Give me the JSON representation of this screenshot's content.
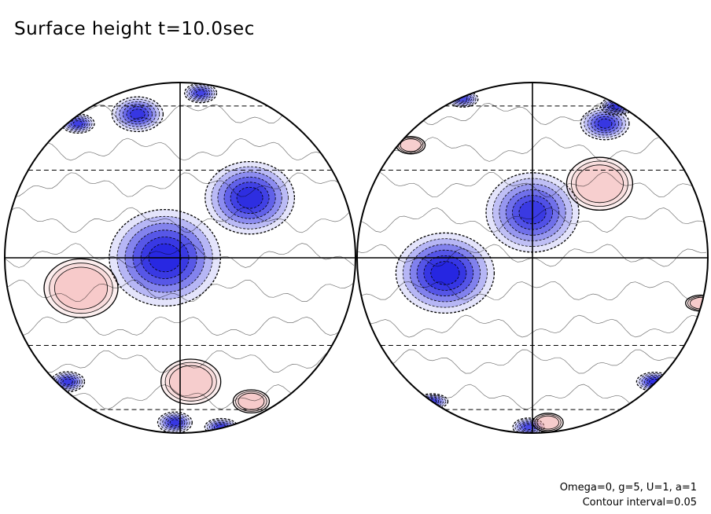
{
  "title": "Surface height t=10.0sec",
  "footer": {
    "params": "Omega=0, g=5, U=1, a=1",
    "contour_interval": "Contour interval=0.05"
  },
  "colors": {
    "positive": "#f0a0a0",
    "negative": "#2020e0",
    "outline": "#000000",
    "background": "#ffffff"
  },
  "chart_data": {
    "type": "heatmap",
    "projection": "two hemispheres (orthographic)",
    "grid": "on",
    "hemispheres": [
      {
        "features": [
          {
            "sign": "neg",
            "lon": 130,
            "lat": 0,
            "amp": 0.9
          },
          {
            "sign": "neg",
            "lon": 160,
            "lat": 20,
            "amp": 0.75
          },
          {
            "sign": "neg",
            "lon": 110,
            "lat": 55,
            "amp": 0.6
          },
          {
            "sign": "neg",
            "lon": 155,
            "lat": 70,
            "amp": 0.45
          },
          {
            "sign": "neg",
            "lon": 70,
            "lat": 50,
            "amp": 0.5
          },
          {
            "sign": "neg",
            "lon": 70,
            "lat": -45,
            "amp": 0.55
          },
          {
            "sign": "neg",
            "lon": 130,
            "lat": -70,
            "amp": 0.6
          },
          {
            "sign": "neg",
            "lon": 250,
            "lat": -10,
            "amp": 0.8
          },
          {
            "sign": "neg",
            "lon": 240,
            "lat": 45,
            "amp": 0.35
          },
          {
            "sign": "neg",
            "lon": 200,
            "lat": -75,
            "amp": 0.5
          },
          {
            "sign": "neg",
            "lon": 10,
            "lat": 25,
            "amp": 0.4
          },
          {
            "sign": "pos",
            "lon": 100,
            "lat": -10,
            "amp": 0.45
          },
          {
            "sign": "pos",
            "lon": 180,
            "lat": -55,
            "amp": 0.4
          },
          {
            "sign": "pos",
            "lon": 40,
            "lat": 20,
            "amp": 0.3
          },
          {
            "sign": "pos",
            "lon": 140,
            "lat": -45,
            "amp": 0.3
          },
          {
            "sign": "pos",
            "lon": 230,
            "lat": 15,
            "amp": 0.25
          }
        ]
      },
      {
        "features": [
          {
            "sign": "neg",
            "lon": 195,
            "lat": -5,
            "amp": 0.95
          },
          {
            "sign": "neg",
            "lon": 225,
            "lat": 15,
            "amp": 0.55
          },
          {
            "sign": "neg",
            "lon": 265,
            "lat": 50,
            "amp": 0.6
          },
          {
            "sign": "neg",
            "lon": 300,
            "lat": 60,
            "amp": 0.55
          },
          {
            "sign": "neg",
            "lon": 340,
            "lat": 55,
            "amp": 0.5
          },
          {
            "sign": "neg",
            "lon": 305,
            "lat": -45,
            "amp": 0.7
          },
          {
            "sign": "neg",
            "lon": 350,
            "lat": -40,
            "amp": 0.75
          },
          {
            "sign": "neg",
            "lon": 120,
            "lat": -10,
            "amp": 0.5
          },
          {
            "sign": "neg",
            "lon": 135,
            "lat": -55,
            "amp": 0.45
          },
          {
            "sign": "neg",
            "lon": 220,
            "lat": -75,
            "amp": 0.4
          },
          {
            "sign": "neg",
            "lon": 155,
            "lat": 65,
            "amp": 0.35
          },
          {
            "sign": "pos",
            "lon": 310,
            "lat": -15,
            "amp": 0.4
          },
          {
            "sign": "pos",
            "lon": 160,
            "lat": 40,
            "amp": 0.25
          },
          {
            "sign": "pos",
            "lon": 240,
            "lat": -70,
            "amp": 0.35
          },
          {
            "sign": "pos",
            "lon": 320,
            "lat": -70,
            "amp": 0.3
          },
          {
            "sign": "pos",
            "lon": 345,
            "lat": 70,
            "amp": 0.3
          },
          {
            "sign": "pos",
            "lon": 250,
            "lat": 25,
            "amp": 0.2
          }
        ]
      }
    ]
  }
}
